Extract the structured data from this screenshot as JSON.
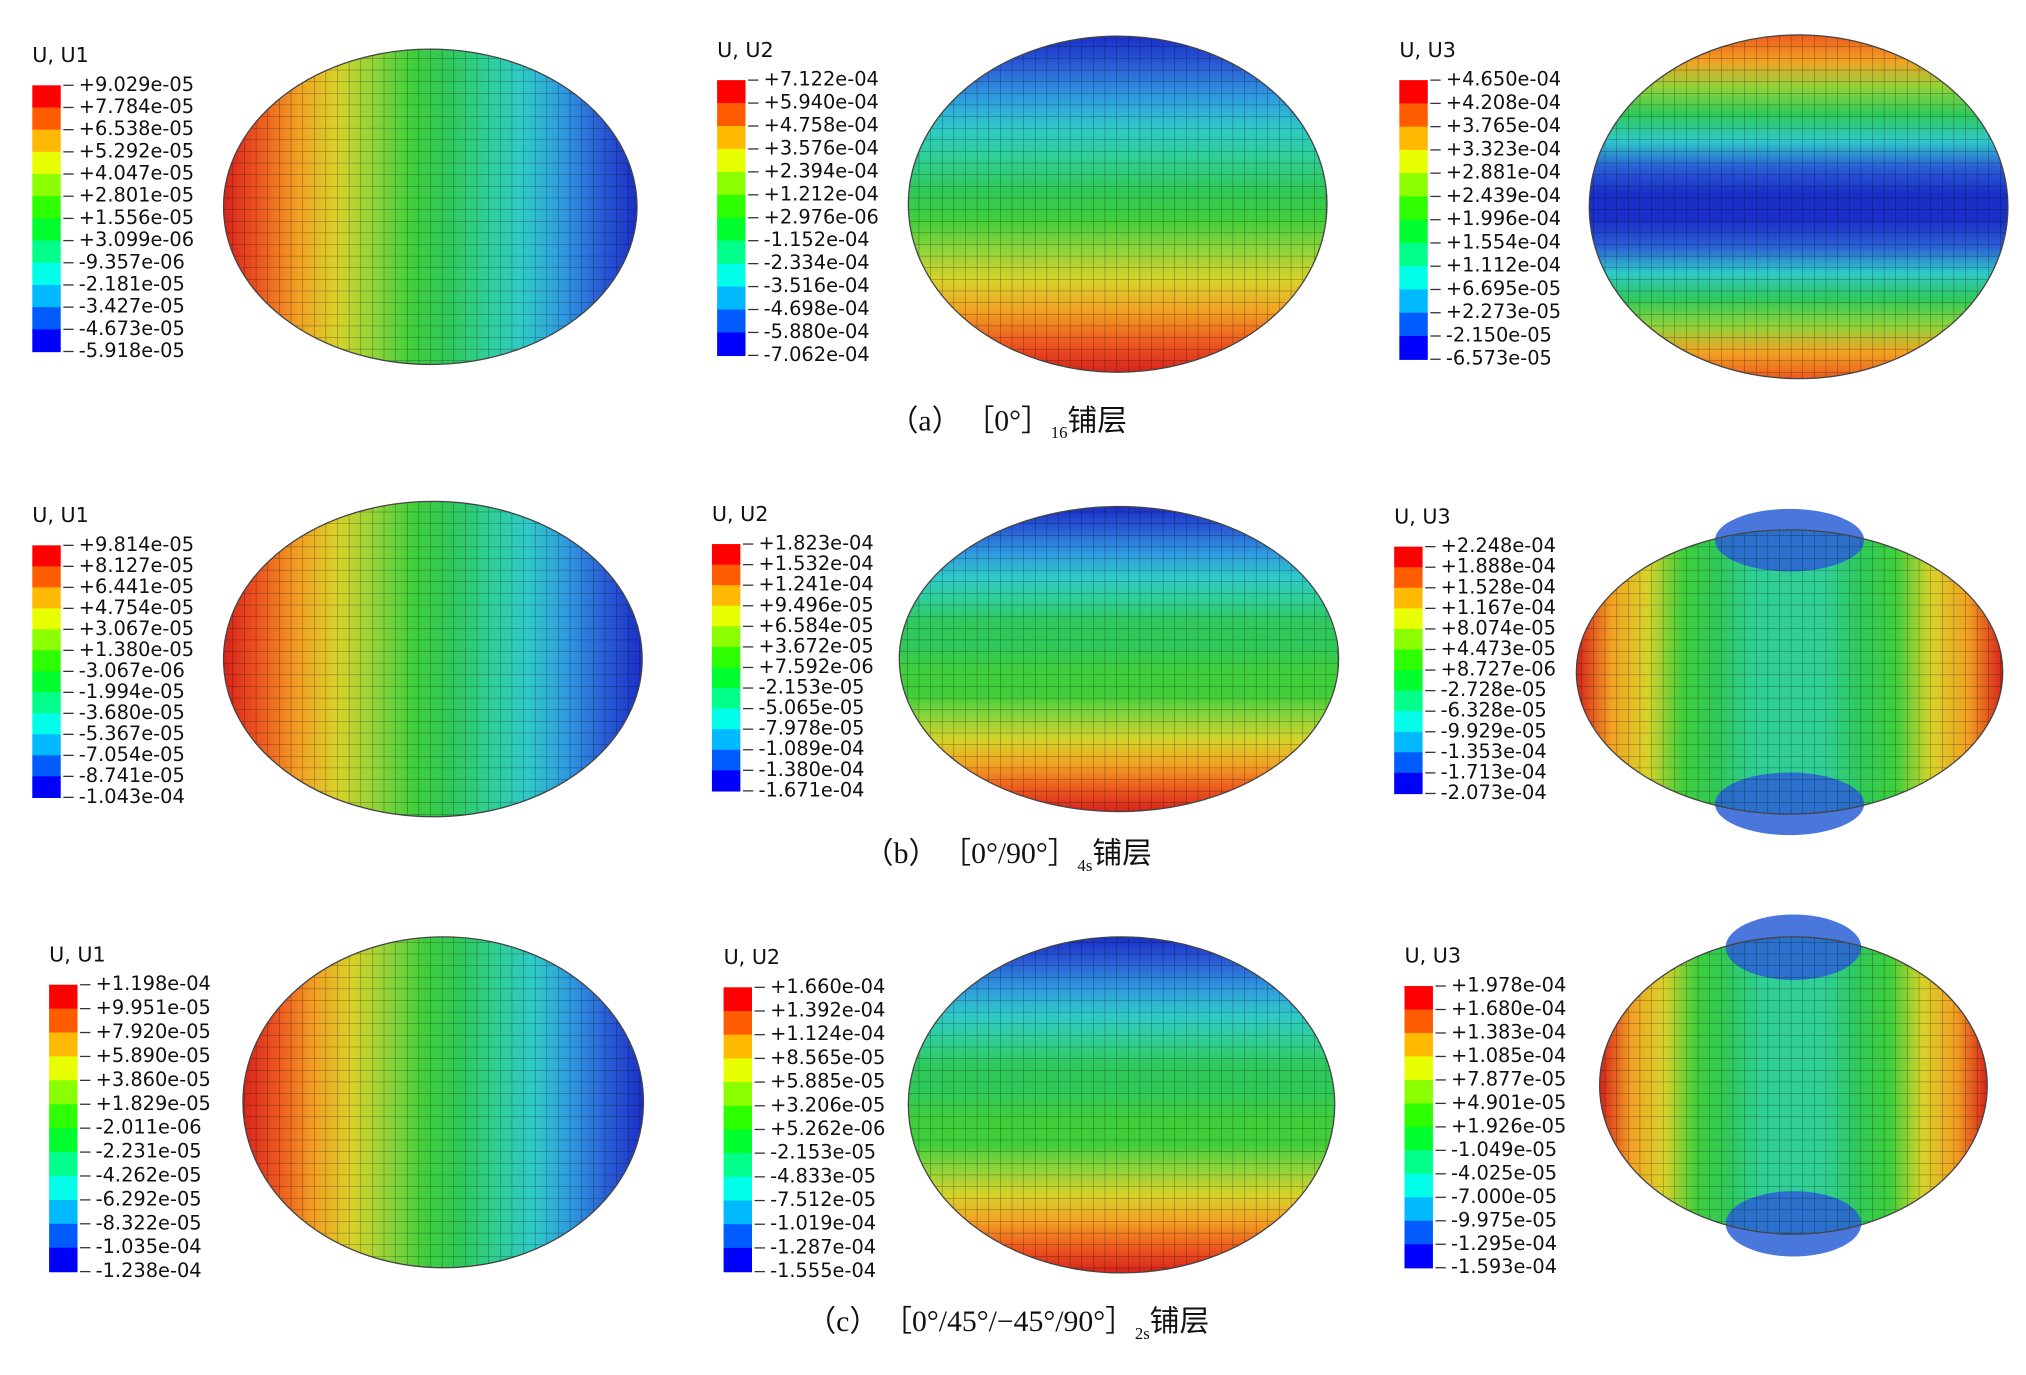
{
  "figure": {
    "rows": [
      {
        "caption": {
          "label": "（a）",
          "layup": "［0°］",
          "subscript": "16",
          "suffix": "铺层"
        },
        "panels": [
          {
            "title": "U, U1",
            "legend": [
              "+9.029e-05",
              "+7.784e-05",
              "+6.538e-05",
              "+5.292e-05",
              "+4.047e-05",
              "+2.801e-05",
              "+1.556e-05",
              "+3.099e-06",
              "-9.357e-06",
              "-2.181e-05",
              "-3.427e-05",
              "-4.673e-05",
              "-5.918e-05"
            ]
          },
          {
            "title": "U, U2",
            "legend": [
              "+7.122e-04",
              "+5.940e-04",
              "+4.758e-04",
              "+3.576e-04",
              "+2.394e-04",
              "+1.212e-04",
              "+2.976e-06",
              "-1.152e-04",
              "-2.334e-04",
              "-3.516e-04",
              "-4.698e-04",
              "-5.880e-04",
              "-7.062e-04"
            ]
          },
          {
            "title": "U, U3",
            "legend": [
              "+4.650e-04",
              "+4.208e-04",
              "+3.765e-04",
              "+3.323e-04",
              "+2.881e-04",
              "+2.439e-04",
              "+1.996e-04",
              "+1.554e-04",
              "+1.112e-04",
              "+6.695e-05",
              "+2.273e-05",
              "-2.150e-05",
              "-6.573e-05"
            ]
          }
        ]
      },
      {
        "caption": {
          "label": "（b）",
          "layup": "［0°/90°］",
          "subscript": "4s",
          "suffix": "铺层"
        },
        "panels": [
          {
            "title": "U, U1",
            "legend": [
              "+9.814e-05",
              "+8.127e-05",
              "+6.441e-05",
              "+4.754e-05",
              "+3.067e-05",
              "+1.380e-05",
              "-3.067e-06",
              "-1.994e-05",
              "-3.680e-05",
              "-5.367e-05",
              "-7.054e-05",
              "-8.741e-05",
              "-1.043e-04"
            ]
          },
          {
            "title": "U, U2",
            "legend": [
              "+1.823e-04",
              "+1.532e-04",
              "+1.241e-04",
              "+9.496e-05",
              "+6.584e-05",
              "+3.672e-05",
              "+7.592e-06",
              "-2.153e-05",
              "-5.065e-05",
              "-7.978e-05",
              "-1.089e-04",
              "-1.380e-04",
              "-1.671e-04"
            ]
          },
          {
            "title": "U, U3",
            "legend": [
              "+2.248e-04",
              "+1.888e-04",
              "+1.528e-04",
              "+1.167e-04",
              "+8.074e-05",
              "+4.473e-05",
              "+8.727e-06",
              "-2.728e-05",
              "-6.328e-05",
              "-9.929e-05",
              "-1.353e-04",
              "-1.713e-04",
              "-2.073e-04"
            ]
          }
        ]
      },
      {
        "caption": {
          "label": "（c）",
          "layup": "［0°/45°/−45°/90°］",
          "subscript": "2s",
          "suffix": "铺层"
        },
        "panels": [
          {
            "title": "U, U1",
            "legend": [
              "+1.198e-04",
              "+9.951e-05",
              "+7.920e-05",
              "+5.890e-05",
              "+3.860e-05",
              "+1.829e-05",
              "-2.011e-06",
              "-2.231e-05",
              "-4.262e-05",
              "-6.292e-05",
              "-8.322e-05",
              "-1.035e-04",
              "-1.238e-04"
            ]
          },
          {
            "title": "U, U2",
            "legend": [
              "+1.660e-04",
              "+1.392e-04",
              "+1.124e-04",
              "+8.565e-05",
              "+5.885e-05",
              "+3.206e-05",
              "+5.262e-06",
              "-2.153e-05",
              "-4.833e-05",
              "-7.512e-05",
              "-1.019e-04",
              "-1.287e-04",
              "-1.555e-04"
            ]
          },
          {
            "title": "U, U3",
            "legend": [
              "+1.978e-04",
              "+1.680e-04",
              "+1.383e-04",
              "+1.085e-04",
              "+7.877e-05",
              "+4.901e-05",
              "+1.926e-05",
              "-1.049e-05",
              "-4.025e-05",
              "-7.000e-05",
              "-9.975e-05",
              "-1.295e-04",
              "-1.593e-04"
            ]
          }
        ]
      }
    ]
  }
}
